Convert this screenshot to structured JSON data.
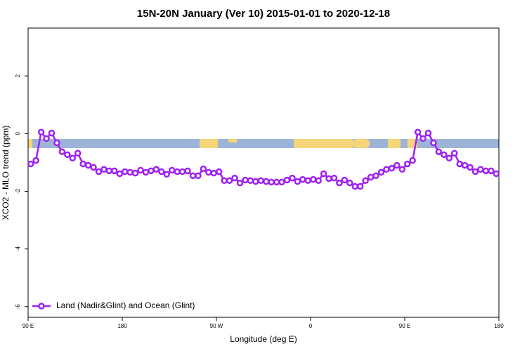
{
  "chart_data": {
    "type": "line",
    "title": "15N-20N January (Ver 10)   2015-01-01 to 2020-12-18",
    "x_label": "Longitude (deg E)",
    "y_label": "XCO2 - MLO trend (ppm)",
    "xlim": [
      90,
      540
    ],
    "xticks": [
      {
        "value": 90,
        "label": "90 E"
      },
      180,
      {
        "value": 270,
        "label": "90 W"
      },
      {
        "value": 360,
        "label": "0"
      },
      {
        "value": 450,
        "label": "90 E"
      },
      {
        "value": 540,
        "label": "180"
      }
    ],
    "ylim": [
      -6.37,
      3.66
    ],
    "yticks": [
      -6,
      -4,
      -2,
      0,
      2
    ],
    "legend": "bottom-left",
    "x": [
      92.5,
      97.5,
      102.5,
      107.5,
      112.5,
      117.5,
      122.5,
      127.5,
      132.5,
      137.5,
      142.5,
      147.5,
      152.5,
      157.5,
      162.5,
      167.5,
      172.5,
      177.5,
      182.5,
      187.5,
      192.5,
      197.5,
      202.5,
      207.5,
      212.5,
      217.5,
      222.5,
      227.5,
      232.5,
      237.5,
      242.5,
      247.5,
      252.5,
      257.5,
      262.5,
      267.5,
      272.5,
      277.5,
      282.5,
      287.5,
      292.5,
      297.5,
      302.5,
      307.5,
      312.5,
      317.5,
      322.5,
      327.5,
      332.5,
      337.5,
      342.5,
      347.5,
      352.5,
      357.5,
      362.5,
      367.5,
      372.5,
      377.5,
      382.5,
      387.5,
      392.5,
      397.5,
      402.5,
      407.5,
      412.5,
      417.5,
      422.5,
      427.5,
      432.5,
      437.5,
      442.5,
      447.5,
      452.5,
      457.5,
      462.5,
      467.5,
      472.5,
      477.5,
      482.5,
      487.5,
      492.5,
      497.5,
      502.5,
      507.5,
      512.5,
      517.5,
      522.5,
      527.5,
      532.5,
      537.5
    ],
    "series": [
      {
        "name": "Land (Nadir&Glint) and Ocean (Glint)",
        "color": "#a020f0",
        "values": [
          -1.05,
          -0.93,
          0.05,
          -0.17,
          0.02,
          -0.32,
          -0.63,
          -0.73,
          -0.85,
          -0.68,
          -1.05,
          -1.1,
          -1.17,
          -1.32,
          -1.24,
          -1.29,
          -1.29,
          -1.39,
          -1.32,
          -1.34,
          -1.37,
          -1.27,
          -1.34,
          -1.29,
          -1.24,
          -1.32,
          -1.41,
          -1.27,
          -1.32,
          -1.32,
          -1.29,
          -1.46,
          -1.46,
          -1.22,
          -1.34,
          -1.37,
          -1.32,
          -1.63,
          -1.63,
          -1.54,
          -1.71,
          -1.61,
          -1.63,
          -1.66,
          -1.63,
          -1.66,
          -1.68,
          -1.68,
          -1.68,
          -1.61,
          -1.54,
          -1.66,
          -1.59,
          -1.63,
          -1.59,
          -1.63,
          -1.39,
          -1.56,
          -1.54,
          -1.71,
          -1.61,
          -1.71,
          -1.83,
          -1.83,
          -1.63,
          -1.51,
          -1.46,
          -1.34,
          -1.24,
          -1.2,
          -1.1,
          -1.24,
          -1.05,
          -0.93,
          0.05,
          -0.17,
          0.02,
          -0.32,
          -0.63,
          -0.73,
          -0.85,
          -0.68,
          -1.05,
          -1.1,
          -1.17,
          -1.32,
          -1.24,
          -1.29,
          -1.29,
          -1.39
        ]
      }
    ]
  }
}
